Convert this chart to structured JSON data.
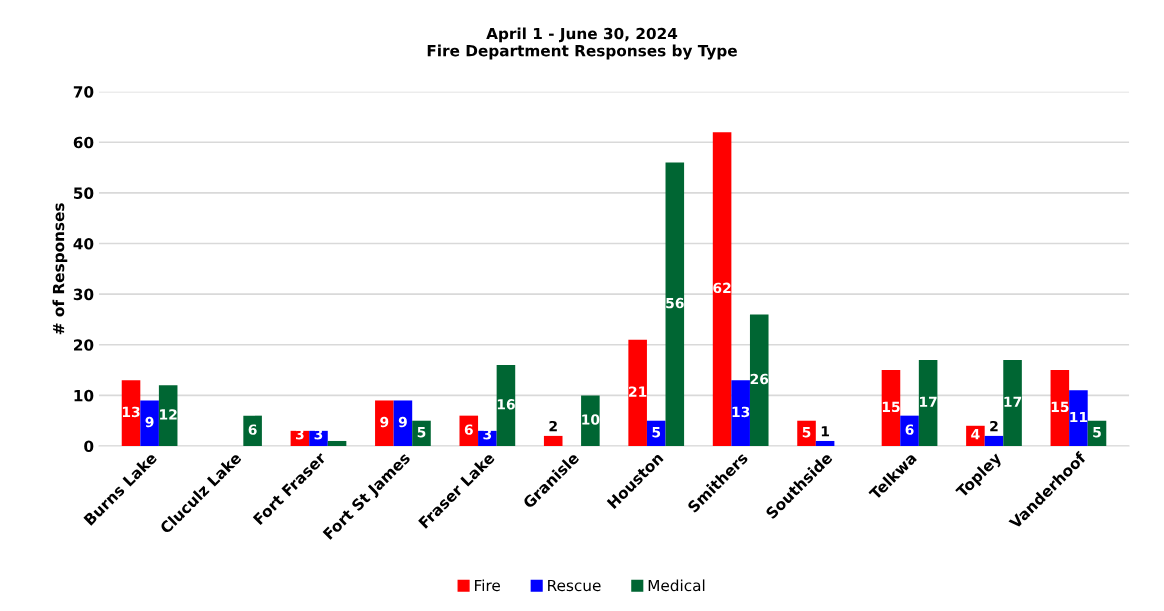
{
  "chart_data": {
    "type": "bar",
    "title": "April 1 - June 30, 2024\nFire Department Responses by Type",
    "ylabel": "# of Responses",
    "categories": [
      "Burns Lake",
      "Cluculz Lake",
      "Fort Fraser",
      "Fort St James",
      "Fraser Lake",
      "Granisle",
      "Houston",
      "Smithers",
      "Southside",
      "Telkwa",
      "Topley",
      "Vanderhoof"
    ],
    "series": [
      {
        "name": "Fire",
        "color": "#ff0000",
        "values": [
          13,
          0,
          3,
          9,
          6,
          2,
          21,
          62,
          5,
          15,
          4,
          15
        ],
        "value_labels": [
          "13",
          null,
          "3",
          "9",
          "6",
          "2",
          "21",
          "62",
          "5",
          "15",
          "4",
          "15"
        ]
      },
      {
        "name": "Rescue",
        "color": "#0000ff",
        "values": [
          9,
          0,
          3,
          9,
          3,
          0,
          5,
          13,
          1,
          6,
          2,
          11
        ],
        "value_labels": [
          "9",
          null,
          "3",
          "9",
          "3",
          null,
          "5",
          "13",
          "1",
          "6",
          "2",
          "11"
        ]
      },
      {
        "name": "Medical",
        "color": "#006633",
        "values": [
          12,
          6,
          1,
          5,
          16,
          10,
          56,
          26,
          0,
          17,
          17,
          5
        ],
        "value_labels": [
          "12",
          "6",
          null,
          "5",
          "16",
          "10",
          "56",
          "26",
          null,
          "17",
          "17",
          "5"
        ]
      }
    ],
    "ylim": [
      0,
      70
    ],
    "yticks": [
      0,
      10,
      20,
      30,
      40,
      50,
      60,
      70
    ],
    "grid": "y",
    "legend": "bottom"
  }
}
